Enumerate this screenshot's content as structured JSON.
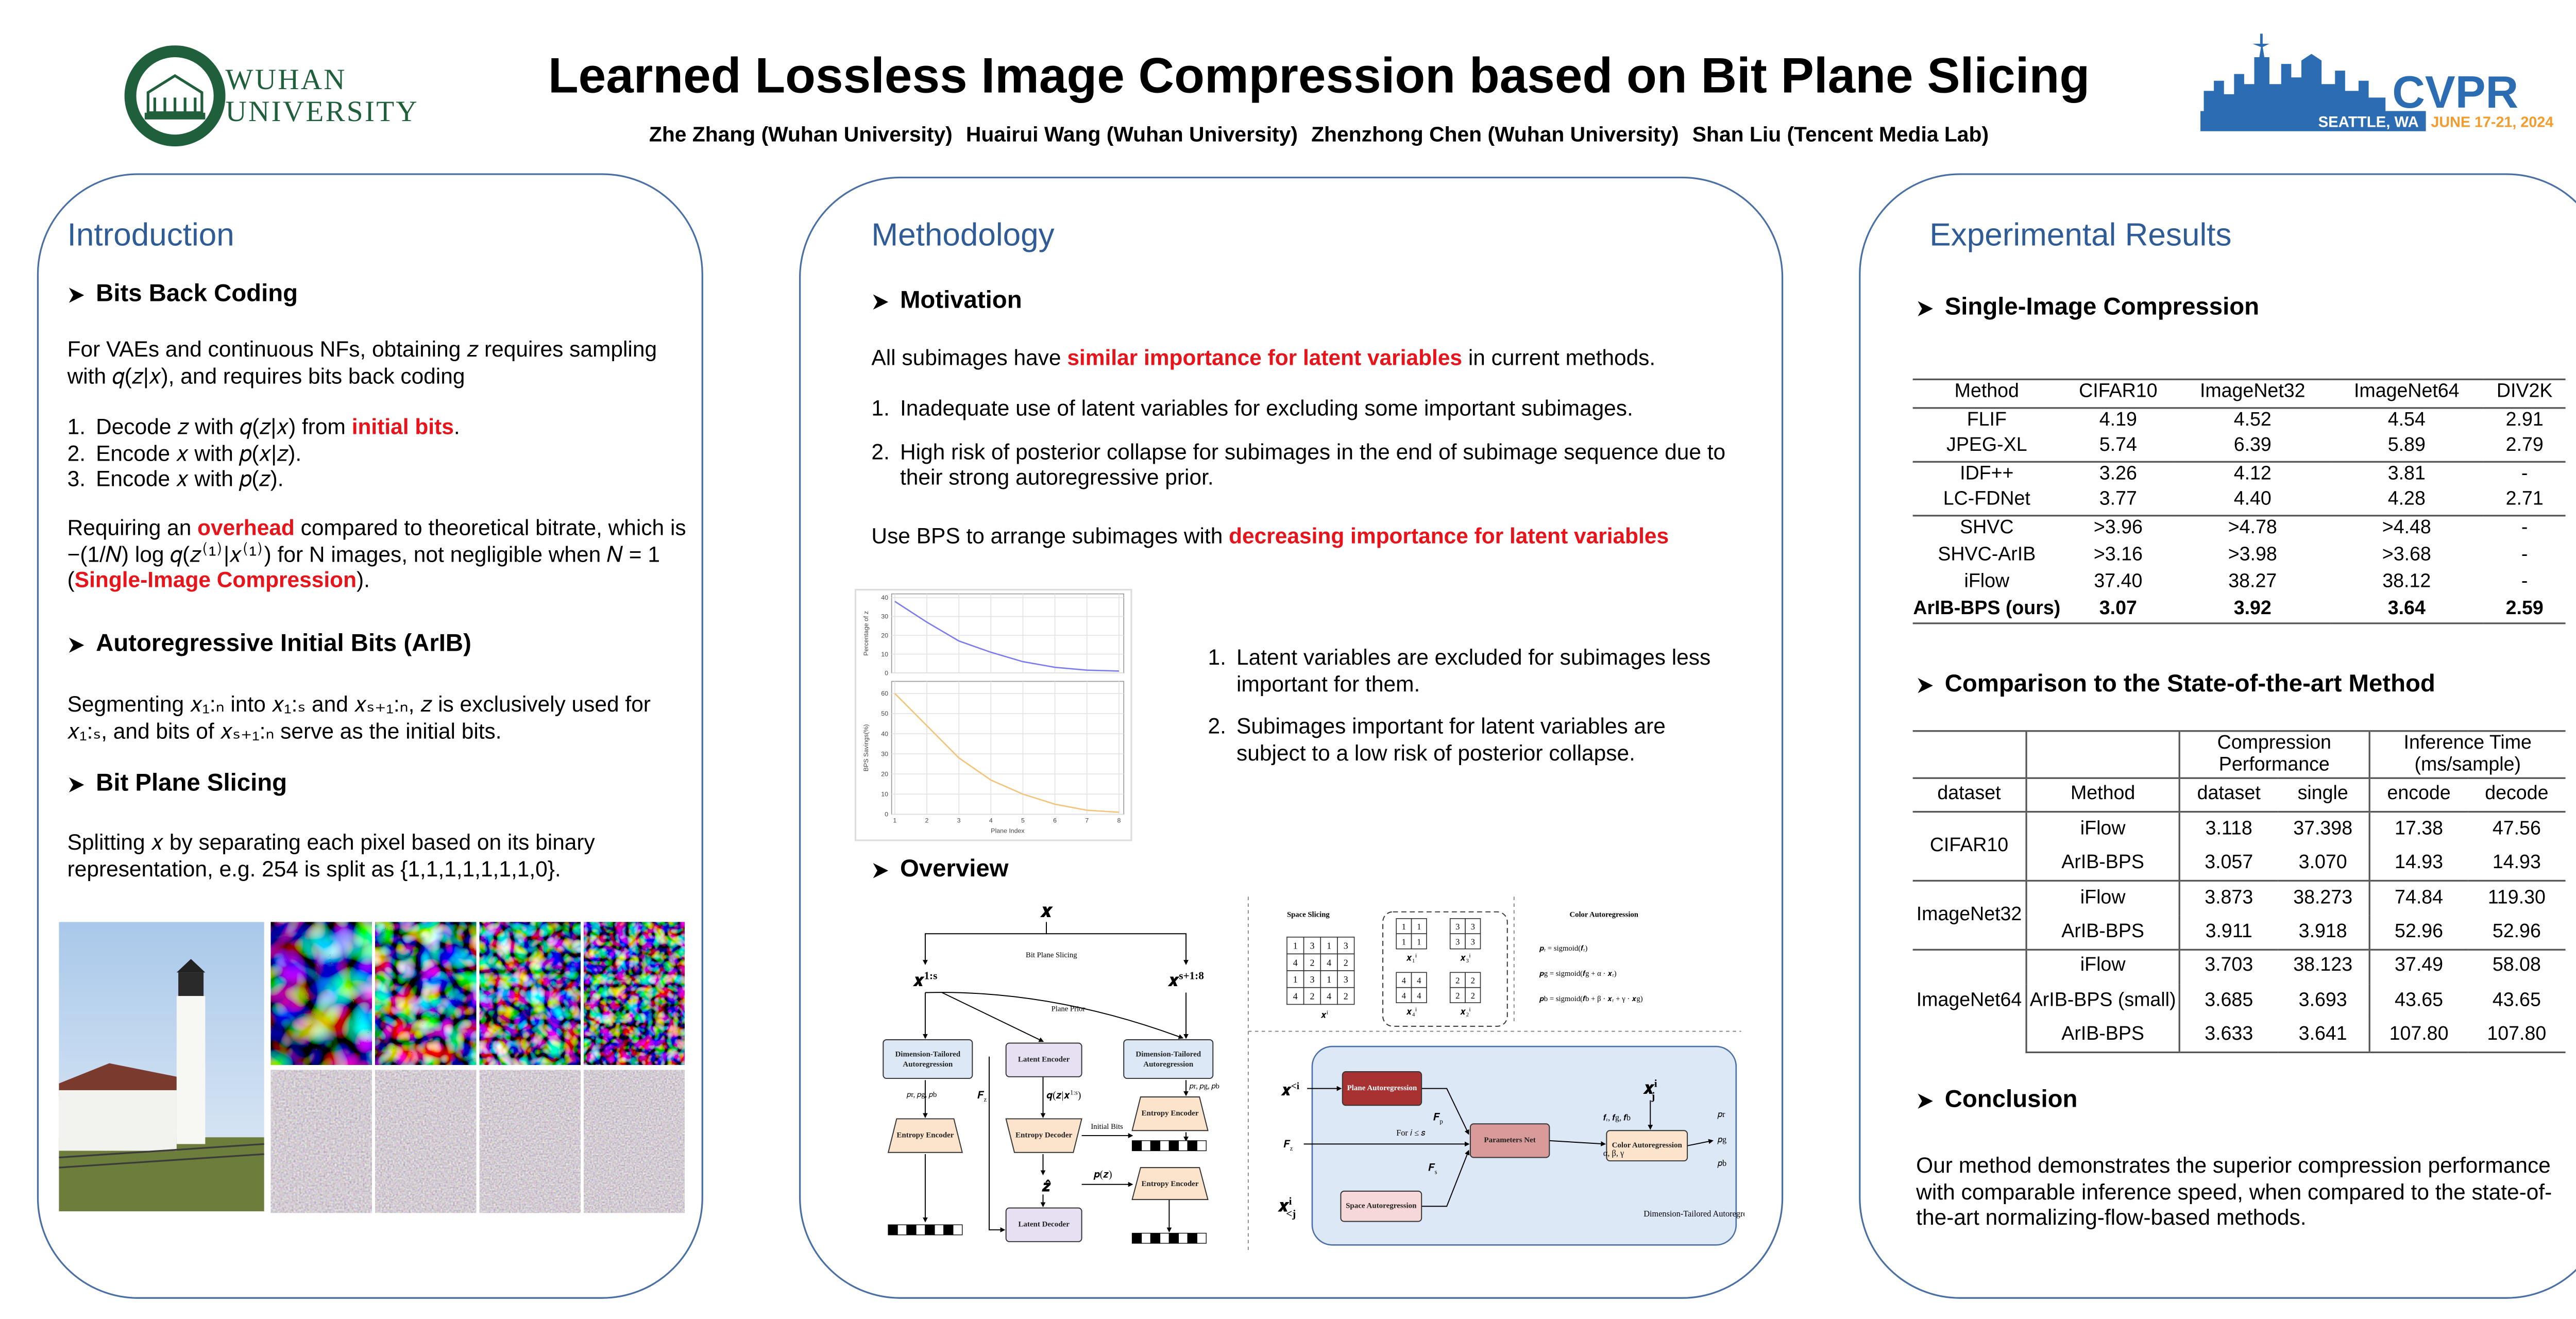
{
  "header": {
    "title": "Learned Lossless Image Compression based on Bit Plane Slicing",
    "authors": [
      "Zhe Zhang (Wuhan University)",
      "Huairui Wang (Wuhan University)",
      "Zhenzhong Chen (Wuhan University)",
      "Shan Liu (Tencent Media Lab)"
    ],
    "left_logo": {
      "lines": [
        "WUHAN",
        "UNIVERSITY"
      ],
      "color": "#1f5f3b"
    },
    "right_logo": {
      "name": "CVPR",
      "location": "SEATTLE, WA",
      "dates": "JUNE 17-21, 2024"
    }
  },
  "panels": [
    {
      "heading": "Introduction",
      "blocks": [
        {
          "kind": "subheading",
          "text": "Bits Back Coding"
        },
        {
          "kind": "paragraph",
          "segments": [
            "For VAEs and continuous NFs, obtaining 𝑧 requires sampling with 𝑞(𝑧|𝑥), and requires bits back coding"
          ]
        },
        {
          "kind": "list",
          "items": [
            {
              "marker": "1.",
              "segments": [
                "Decode 𝑧 with 𝑞(𝑧|𝑥) from ",
                {
                  "text": "initial bits",
                  "emphasis": true
                },
                "."
              ]
            },
            {
              "marker": "2.",
              "segments": [
                "Encode 𝑥 with 𝑝(𝑥|𝑧)."
              ]
            },
            {
              "marker": "3.",
              "segments": [
                "Encode 𝑥 with 𝑝(𝑧)."
              ]
            }
          ]
        },
        {
          "kind": "paragraph",
          "segments": [
            "Requiring an ",
            {
              "text": "overhead",
              "emphasis": true
            },
            " compared to theoretical bitrate, which is −(1/𝑁) log 𝑞(𝑧⁽¹⁾|𝑥⁽¹⁾) for N images, not negligible when 𝑁 = 1 (",
            {
              "text": "Single-Image Compression",
              "emphasis": true
            },
            ")."
          ]
        },
        {
          "kind": "subheading",
          "text": "Autoregressive Initial Bits (ArIB)"
        },
        {
          "kind": "paragraph",
          "segments": [
            "Segmenting 𝑥₁:ₙ into 𝑥₁:ₛ and 𝑥ₛ₊₁:ₙ, 𝑧 is exclusively used for 𝑥₁:ₛ, and bits of 𝑥ₛ₊₁:ₙ serve as the initial bits."
          ]
        },
        {
          "kind": "subheading",
          "text": "Bit Plane Slicing"
        },
        {
          "kind": "paragraph",
          "segments": [
            "Splitting 𝑥 by separating each pixel based on its binary representation, e.g. 254 is split as {1,1,1,1,1,1,1,0}."
          ]
        },
        {
          "kind": "images"
        }
      ]
    },
    {
      "heading": "Methodology",
      "blocks": [
        {
          "kind": "subheading",
          "text": "Motivation"
        },
        {
          "kind": "paragraph",
          "segments": [
            "All subimages have ",
            {
              "text": "similar importance for latent variables",
              "emphasis": true
            },
            " in current methods."
          ]
        },
        {
          "kind": "list",
          "items": [
            {
              "marker": "1.",
              "segments": [
                "Inadequate use of latent variables for excluding some important subimages."
              ]
            },
            {
              "marker": "2.",
              "segments": [
                "High risk of posterior collapse for subimages in the end of subimage sequence due to their strong autoregressive prior."
              ]
            }
          ]
        },
        {
          "kind": "paragraph",
          "segments": [
            "Use BPS to arrange subimages with ",
            {
              "text": "decreasing importance for latent variables",
              "emphasis": true
            }
          ]
        },
        {
          "kind": "figure",
          "x_label": "Plane Index",
          "xlim": [
            0.9,
            8.15
          ],
          "xticks": [
            1,
            2,
            3,
            4,
            5,
            6,
            7,
            8
          ],
          "charts": [
            {
              "type": "line",
              "y_label": "Percentage of z",
              "ylim": [
                0,
                42
              ],
              "yticks": [
                0,
                10,
                20,
                30,
                40
              ],
              "x": [
                1,
                2,
                3,
                4,
                5,
                6,
                7,
                8
              ],
              "values": [
                38,
                27,
                17,
                11,
                6,
                3,
                1.5,
                1
              ],
              "color": "#7b7bef"
            },
            {
              "type": "line",
              "y_label": "BPS Savings(%)",
              "ylim": [
                0,
                66
              ],
              "yticks": [
                0,
                10,
                20,
                30,
                40,
                50,
                60
              ],
              "x": [
                1,
                2,
                3,
                4,
                5,
                6,
                7,
                8
              ],
              "values": [
                60,
                44,
                28,
                17,
                10,
                5,
                2,
                1
              ],
              "color": "#f5c27a"
            }
          ],
          "list": {
            "items": [
              {
                "marker": "1.",
                "segments": [
                  "Latent variables are excluded for subimages less important for them."
                ]
              },
              {
                "marker": "2.",
                "segments": [
                  "Subimages important for latent variables are subject to a low risk of posterior collapse."
                ]
              }
            ]
          }
        },
        {
          "kind": "subheading",
          "text": "Overview"
        },
        {
          "kind": "diagram",
          "items": [
            {
              "kind": "label",
              "text": "𝒙"
            },
            {
              "kind": "label",
              "text": "Bit Plane Slicing"
            },
            {
              "kind": "label",
              "text": "𝒙",
              "sup": "1:s"
            },
            {
              "kind": "label",
              "text": "𝒙",
              "sup": "s+1:8"
            },
            {
              "kind": "label",
              "text": "Plane Prior"
            },
            {
              "kind": "box",
              "text": "Dimension-Tailored Autoregression",
              "fill": "#dde8f7"
            },
            {
              "kind": "box",
              "text": "Latent Encoder",
              "fill": "#e6e0f2"
            },
            {
              "kind": "box",
              "text": "Dimension-Tailored Autoregression",
              "fill": "#dde8f7"
            },
            {
              "kind": "label",
              "text": "𝑝r, 𝑝g, 𝑝b"
            },
            {
              "kind": "label",
              "text": "𝑭",
              "sub": "z"
            },
            {
              "kind": "label",
              "text": "𝒒(𝒛|𝒙",
              "sup": "1:s",
              "after": ")"
            },
            {
              "kind": "trapezoid",
              "text": "Entropy Encoder",
              "fill": "#fbe3cc"
            },
            {
              "kind": "trapezoid_inv",
              "text": "Entropy Decoder",
              "fill": "#fbe3cc"
            },
            {
              "kind": "label",
              "text": "Initial Bits"
            },
            {
              "kind": "trapezoid",
              "text": "Entropy Encoder",
              "fill": "#fbe3cc"
            },
            {
              "kind": "label",
              "text": "𝒛̂"
            },
            {
              "kind": "label",
              "text": "𝒑(𝒛)"
            },
            {
              "kind": "trapezoid",
              "text": "Entropy Encoder",
              "fill": "#fbe3cc"
            },
            {
              "kind": "box",
              "text": "Latent Decoder",
              "fill": "#e6e0f2"
            },
            {
              "kind": "label",
              "text": "𝑝r, 𝑝g, 𝑝b"
            },
            {
              "kind": "label",
              "text": "Space Slicing"
            },
            {
              "kind": "label",
              "text": "Color Autoregression"
            },
            {
              "kind": "label",
              "text": "𝒙",
              "sup": "i"
            },
            {
              "kind": "label",
              "text": "𝒑ᵣ = sigmoid(𝒇ᵣ)"
            },
            {
              "kind": "label",
              "text": "𝒑g = sigmoid(𝒇g + α · 𝒙ᵣ)"
            },
            {
              "kind": "label",
              "text": "𝒑b = sigmoid(𝒇b + β · 𝒙ᵣ + γ · 𝒙g)"
            },
            {
              "kind": "box",
              "text": "Plane Autoregression",
              "fill": "#a83232"
            },
            {
              "kind": "box",
              "text": "Parameters Net",
              "fill": "#d99a9a"
            },
            {
              "kind": "box",
              "text": "Color Autoregression",
              "fill": "#fbe3cc"
            },
            {
              "kind": "box",
              "text": "Space Autoregression",
              "fill": "#f6d8d8"
            },
            {
              "kind": "label",
              "text": "𝒙",
              "sup": "<i"
            },
            {
              "kind": "label",
              "text": "𝑭",
              "sub": "p"
            },
            {
              "kind": "label",
              "text": "For 𝑖 ≤ 𝑠"
            },
            {
              "kind": "label",
              "text": "𝑭",
              "sub": "z"
            },
            {
              "kind": "label",
              "text": "𝑭",
              "sub": "s"
            },
            {
              "kind": "label",
              "text": "𝒇ᵣ, 𝒇g, 𝒇b"
            },
            {
              "kind": "label",
              "text": "α, β, γ"
            },
            {
              "kind": "label",
              "text": "𝒙",
              "sup": "i",
              "sub": "j"
            },
            {
              "kind": "label",
              "text": "𝒙",
              "sup": "i",
              "sub": "<j"
            },
            {
              "kind": "label",
              "text": "𝑝r"
            },
            {
              "kind": "label",
              "text": "𝑝g"
            },
            {
              "kind": "label",
              "text": "𝑝b"
            },
            {
              "kind": "label",
              "text": "Dimension-Tailored Autoregression For 𝒙",
              "sup": "i",
              "sub": "j"
            }
          ],
          "space_grid": [
            [
              1,
              3,
              1,
              3
            ],
            [
              4,
              2,
              4,
              2
            ],
            [
              1,
              3,
              1,
              3
            ],
            [
              4,
              2,
              4,
              2
            ]
          ],
          "sub_grids": [
            {
              "label": "𝒙₁ⁱ",
              "values": [
                [
                  1,
                  1
                ],
                [
                  1,
                  1
                ]
              ]
            },
            {
              "label": "𝒙₃ⁱ",
              "values": [
                [
                  3,
                  3
                ],
                [
                  3,
                  3
                ]
              ]
            },
            {
              "label": "𝒙₄ⁱ",
              "values": [
                [
                  4,
                  4
                ],
                [
                  4,
                  4
                ]
              ]
            },
            {
              "label": "𝒙₂ⁱ",
              "values": [
                [
                  2,
                  2
                ],
                [
                  2,
                  2
                ]
              ]
            }
          ]
        }
      ]
    },
    {
      "heading": "Experimental Results",
      "blocks": [
        {
          "kind": "subheading",
          "text": "Single-Image Compression"
        },
        {
          "kind": "table",
          "columns": [
            "Method",
            "CIFAR10",
            "ImageNet32",
            "ImageNet64",
            "DIV2K"
          ],
          "rows": [
            [
              "FLIF",
              "4.19",
              "4.52",
              "4.54",
              "2.91"
            ],
            [
              "JPEG-XL",
              "5.74",
              "6.39",
              "5.89",
              "2.79"
            ],
            [
              "IDF++",
              "3.26",
              "4.12",
              "3.81",
              "-"
            ],
            [
              "LC-FDNet",
              "3.77",
              "4.40",
              "4.28",
              "2.71"
            ],
            [
              "SHVC",
              ">3.96",
              ">4.78",
              ">4.48",
              "-"
            ],
            [
              "SHVC-ArIB",
              ">3.16",
              ">3.98",
              ">3.68",
              "-"
            ],
            [
              "iFlow",
              "37.40",
              "38.27",
              "38.12",
              "-"
            ],
            [
              "ArIB-BPS (ours)",
              "3.07",
              "3.92",
              "3.64",
              "2.59"
            ]
          ]
        },
        {
          "kind": "subheading",
          "text": "Comparison to the State-of-the-art Method"
        },
        {
          "kind": "grouped_table",
          "header_top": [
            "Compression Performance",
            "Inference Time (ms/sample)"
          ],
          "columns": [
            "dataset",
            "Method",
            "dataset",
            "single",
            "encode",
            "decode"
          ],
          "groups": [
            {
              "dataset": "CIFAR10",
              "rows": [
                [
                  "iFlow",
                  "3.118",
                  "37.398",
                  "17.38",
                  "47.56"
                ],
                [
                  "ArIB-BPS",
                  "3.057",
                  "3.070",
                  "14.93",
                  "14.93"
                ]
              ]
            },
            {
              "dataset": "ImageNet32",
              "rows": [
                [
                  "iFlow",
                  "3.873",
                  "38.273",
                  "74.84",
                  "119.30"
                ],
                [
                  "ArIB-BPS",
                  "3.911",
                  "3.918",
                  "52.96",
                  "52.96"
                ]
              ]
            },
            {
              "dataset": "ImageNet64",
              "rows": [
                [
                  "iFlow",
                  "3.703",
                  "38.123",
                  "37.49",
                  "58.08"
                ],
                [
                  "ArIB-BPS (small)",
                  "3.685",
                  "3.693",
                  "43.65",
                  "43.65"
                ],
                [
                  "ArIB-BPS",
                  "3.633",
                  "3.641",
                  "107.80",
                  "107.80"
                ]
              ]
            }
          ]
        },
        {
          "kind": "subheading",
          "text": "Conclusion"
        },
        {
          "kind": "paragraph",
          "segments": [
            "Our method demonstrates the superior compression performance with comparable inference speed, when compared to the state-of-the-art normalizing-flow-based methods."
          ]
        }
      ]
    }
  ]
}
